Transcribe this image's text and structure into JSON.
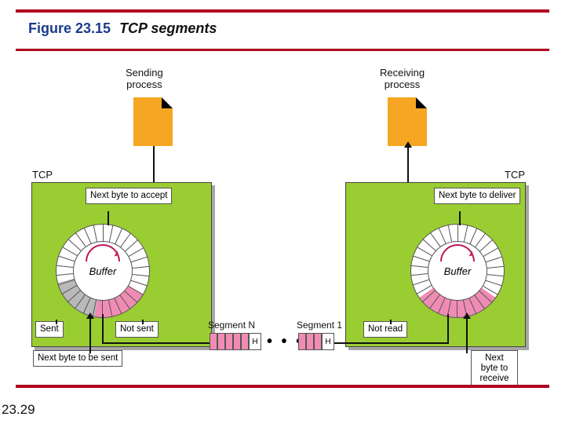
{
  "colors": {
    "hr": "#b00020",
    "tcp_box": "#9acd32",
    "doc": "#f5a623",
    "seg_pink": "#f08cb4",
    "seg_gray": "#b9b9b9",
    "arc": "#c0185b"
  },
  "title": {
    "fig": "Figure 23.15",
    "cap": "TCP segments"
  },
  "page": "23.29",
  "labels": {
    "sending": "Sending\nprocess",
    "receiving": "Receiving\nprocess",
    "tcp": "TCP",
    "buffer": "Buffer",
    "next_accept": "Next byte\nto accept",
    "next_deliver": "Next byte\nto deliver",
    "sent": "Sent",
    "not_sent": "Not sent",
    "not_read": "Not read",
    "next_send": "Next byte\nto be sent",
    "next_receive": "Next byte\nto receive",
    "segN": "Segment N",
    "seg1": "Segment 1",
    "H": "H",
    "dots": "• • •"
  }
}
